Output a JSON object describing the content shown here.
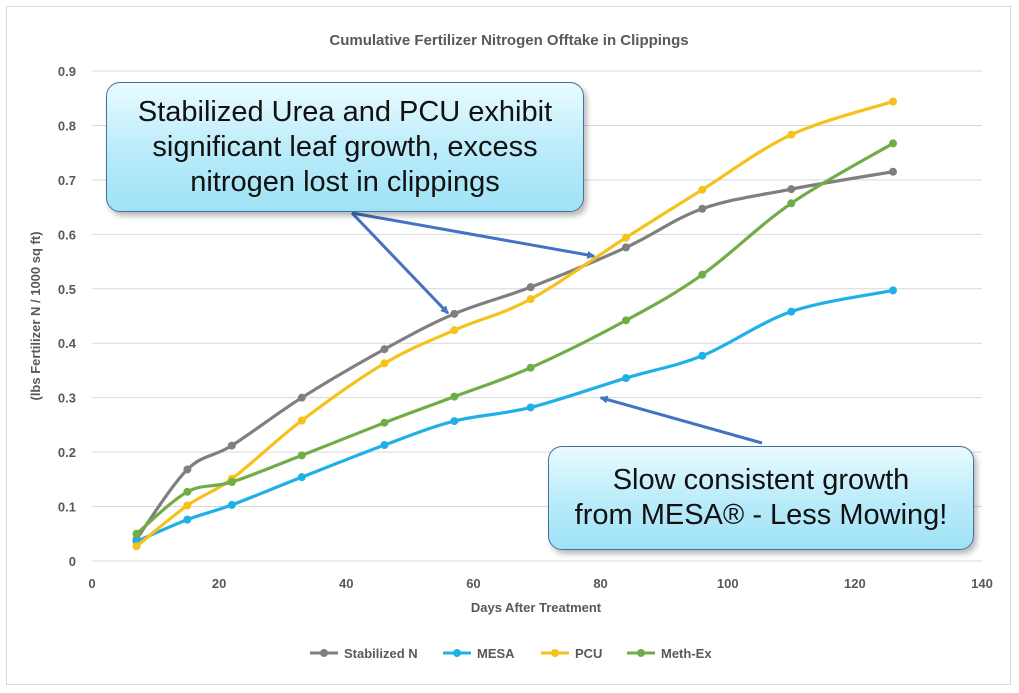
{
  "chart_data": {
    "type": "line",
    "title": "Cumulative Fertilizer Nitrogen Offtake in Clippings",
    "xlabel": "Days After Treatment",
    "ylabel": "(lbs Fertilizer N / 1000 sq ft)",
    "xlim": [
      0,
      140
    ],
    "ylim": [
      0,
      0.9
    ],
    "xticks": [
      0,
      20,
      40,
      60,
      80,
      100,
      120,
      140
    ],
    "yticks": [
      0,
      0.1,
      0.2,
      0.3,
      0.4,
      0.5,
      0.6,
      0.7,
      0.8,
      0.9
    ],
    "xtick_labels": [
      "0",
      "20",
      "40",
      "60",
      "80",
      "100",
      "120",
      "140"
    ],
    "ytick_labels": [
      "0",
      "0.1",
      "0.2",
      "0.3",
      "0.4",
      "0.5",
      "0.6",
      "0.7",
      "0.8",
      "0.9"
    ],
    "grid": "horizontal",
    "legend_position": "bottom",
    "x": [
      7,
      15,
      22,
      33,
      46,
      57,
      69,
      84,
      96,
      110,
      126
    ],
    "series": [
      {
        "name": "Stabilized N",
        "color": "#7f7f7f",
        "values": [
          0.04,
          0.168,
          0.212,
          0.3,
          0.389,
          0.454,
          0.503,
          0.576,
          0.647,
          0.683,
          0.715
        ]
      },
      {
        "name": "MESA",
        "color": "#1fb1e6",
        "values": [
          0.036,
          0.076,
          0.103,
          0.154,
          0.213,
          0.257,
          0.282,
          0.336,
          0.377,
          0.458,
          0.497
        ]
      },
      {
        "name": "PCU",
        "color": "#f5c21b",
        "values": [
          0.027,
          0.102,
          0.151,
          0.258,
          0.363,
          0.424,
          0.481,
          0.594,
          0.682,
          0.783,
          0.844
        ]
      },
      {
        "name": "Meth-Ex",
        "color": "#70ad47",
        "values": [
          0.05,
          0.127,
          0.145,
          0.194,
          0.254,
          0.302,
          0.355,
          0.442,
          0.526,
          0.657,
          0.767
        ]
      }
    ],
    "annotations": [
      {
        "text": "Stabilized Urea and PCU exhibit\nsignificant leaf growth, excess\nnitrogen lost in clippings",
        "arrows_to": [
          [
            56,
            0.455
          ],
          [
            79,
            0.56
          ]
        ]
      },
      {
        "text": "Slow consistent growth\nfrom MESA® - Less Mowing!",
        "arrows_to": [
          [
            80,
            0.3
          ]
        ]
      }
    ]
  },
  "style": {
    "title_color": "#595959",
    "axis_text_color": "#595959",
    "grid_color": "#d9d9d9",
    "arrow_color": "#4472c4",
    "callout_border": "#41719c"
  }
}
